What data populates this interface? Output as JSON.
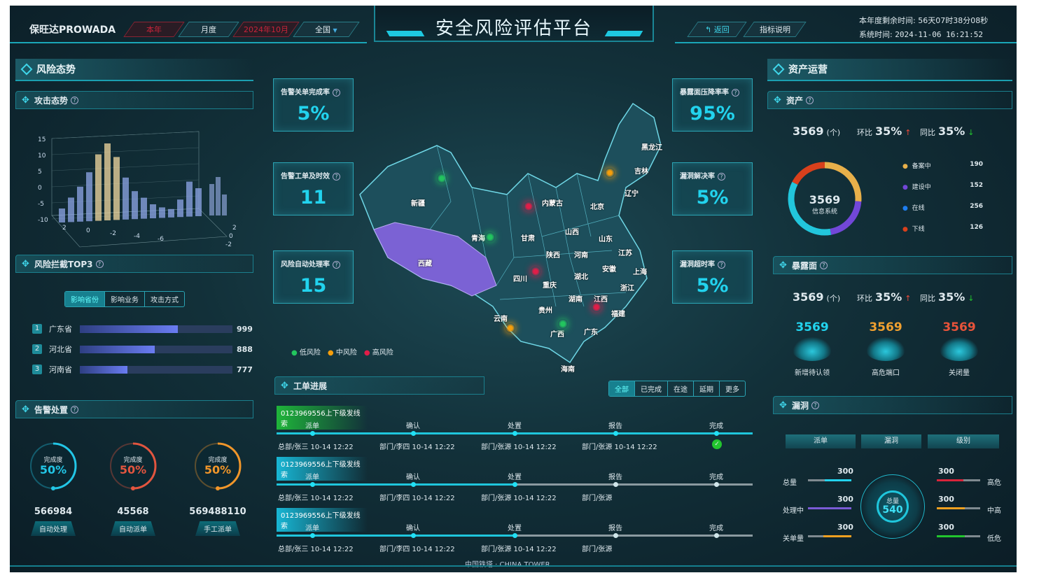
{
  "header": {
    "logo": "保旺达PROWADA",
    "filters": [
      "本年",
      "月度",
      "2024年10月",
      "全国"
    ],
    "title": "安全风险评估平台",
    "back": "返回",
    "help": "指标说明",
    "remaining_label": "本年度剩余时间:",
    "remaining": "56天07时38分08秒",
    "system_label": "系统时间:",
    "system_time": "2024-11-06  16:21:52"
  },
  "left": {
    "section": "风险态势",
    "attack": {
      "title": "攻击态势",
      "zticks": [
        "15",
        "10",
        "5",
        "0",
        "-5",
        "-10"
      ],
      "xticks": [
        "2",
        "0",
        "-2",
        "-4",
        "-6"
      ],
      "yticks": [
        "2",
        "0",
        "-2"
      ]
    },
    "top3": {
      "title": "风险拦截TOP3",
      "tabs": [
        "影响省份",
        "影响业务",
        "攻击方式"
      ],
      "items": [
        {
          "rank": "1",
          "name": "广东省",
          "value": "999",
          "pct": 64
        },
        {
          "rank": "2",
          "name": "河北省",
          "value": "888",
          "pct": 49
        },
        {
          "rank": "3",
          "name": "河南省",
          "value": "777",
          "pct": 31
        }
      ]
    },
    "alarm": {
      "title": "告警处置",
      "gauges": [
        {
          "label": "完成度",
          "pct": "50%",
          "value": "566984",
          "name": "自动处理",
          "color": "#22c6e6"
        },
        {
          "label": "完成度",
          "pct": "50%",
          "value": "45568",
          "name": "自动派单",
          "color": "#e2553f"
        },
        {
          "label": "完成度",
          "pct": "50%",
          "value": "569488110",
          "name": "手工派单",
          "color": "#f0962a"
        }
      ]
    }
  },
  "kpis_left": [
    {
      "label": "告警关单完成率",
      "value": "5%"
    },
    {
      "label": "告警工单及时效",
      "value": "11"
    },
    {
      "label": "风险自动处理率",
      "value": "15"
    }
  ],
  "kpis_right": [
    {
      "label": "暴露面压降率率",
      "value": "95%"
    },
    {
      "label": "漏洞解决率",
      "value": "5%"
    },
    {
      "label": "漏洞超时率",
      "value": "5%"
    }
  ],
  "map": {
    "provinces": [
      "新疆",
      "西藏",
      "青海",
      "甘肃",
      "内蒙古",
      "黑龙江",
      "吉林",
      "辽宁",
      "北京",
      "山西",
      "山东",
      "陕西",
      "河南",
      "江苏",
      "四川",
      "重庆",
      "湖北",
      "安徽",
      "上海",
      "浙江",
      "湖南",
      "江西",
      "贵州",
      "福建",
      "云南",
      "广西",
      "广东",
      "海南"
    ],
    "highlighted": "西藏",
    "legend": [
      {
        "label": "低风险",
        "color": "#22c55e"
      },
      {
        "label": "中风险",
        "color": "#f59e0b"
      },
      {
        "label": "高风险",
        "color": "#e11d48"
      }
    ]
  },
  "workorders": {
    "title": "工单进展",
    "tabs": [
      "全部",
      "已完成",
      "在途",
      "延期",
      "更多"
    ],
    "steps": [
      "派单",
      "确认",
      "处置",
      "报告",
      "完成"
    ],
    "items": [
      {
        "id": "0123969556上下级发线索",
        "color": "#1fb53a",
        "progress": 100,
        "info": [
          "总部/张三  10-14 12:22",
          "部门/李四  10-14 12:22",
          "部门/张源  10-14 12:22",
          "部门/张源  10-14 12:22"
        ],
        "done": true
      },
      {
        "id": "0123969556上下级发线索",
        "color": "#18b6d4",
        "progress": 50,
        "info": [
          "总部/张三  10-14 12:22",
          "部门/李四  10-14 12:22",
          "部门/张源  10-14 12:22",
          "部门/张源"
        ],
        "done": false
      },
      {
        "id": "0123969556上下级发线索",
        "color": "#18b6d4",
        "progress": 50,
        "info": [
          "总部/张三  10-14 12:22",
          "部门/李四  10-14 12:22",
          "部门/张源  10-14 12:22",
          "部门/张源"
        ],
        "done": false
      }
    ]
  },
  "footer": "中国铁塔 · CHINA TOWER",
  "right": {
    "section": "资产运营",
    "asset": {
      "title": "资产",
      "total": "3569",
      "unit": "(个)",
      "mom_label": "环比",
      "mom": "35%",
      "yoy_label": "同比",
      "yoy": "35%",
      "center_value": "3569",
      "center_label": "信息系统",
      "legend": [
        {
          "label": "备案中",
          "value": "190",
          "color": "#e8b04a"
        },
        {
          "label": "建设中",
          "value": "152",
          "color": "#7247d8"
        },
        {
          "label": "在线",
          "value": "256",
          "color": "#1e7ef0"
        },
        {
          "label": "下线",
          "value": "126",
          "color": "#d8401c"
        }
      ]
    },
    "exposure": {
      "title": "暴露面",
      "total": "3569",
      "unit": "(个)",
      "mom_label": "环比",
      "mom": "35%",
      "yoy_label": "同比",
      "yoy": "35%",
      "items": [
        {
          "value": "3569",
          "label": "新增待认领",
          "color": "#22d3ee"
        },
        {
          "value": "3569",
          "label": "高危端口",
          "color": "#f0a030"
        },
        {
          "value": "3569",
          "label": "关闭量",
          "color": "#e8533a"
        }
      ]
    },
    "vuln": {
      "title": "漏洞",
      "headers": [
        "派单",
        "漏洞",
        "级别"
      ],
      "center_label": "总量",
      "center_value": "540",
      "left": [
        {
          "label": "总量",
          "value": "300",
          "pct": 62,
          "color": "#22d3ee"
        },
        {
          "label": "处理中",
          "value": "300",
          "pct": 100,
          "color": "#7a5bd6"
        },
        {
          "label": "关单量",
          "value": "300",
          "pct": 65,
          "color": "#f0a020"
        }
      ],
      "right": [
        {
          "label": "高危",
          "value": "300",
          "pct": 62,
          "color": "#d8243a"
        },
        {
          "label": "中高",
          "value": "300",
          "pct": 65,
          "color": "#f0a020"
        },
        {
          "label": "低危",
          "value": "300",
          "pct": 65,
          "color": "#22c52e"
        }
      ]
    }
  }
}
